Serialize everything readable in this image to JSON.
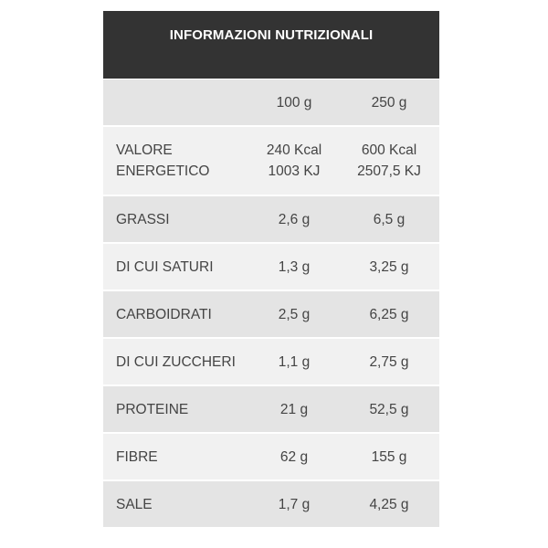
{
  "title": "INFORMAZIONI NUTRIZIONALI",
  "colors": {
    "header_bg": "#333333",
    "row_dark": "#e4e4e4",
    "row_light": "#f1f1f1"
  },
  "columns": [
    "100 g",
    "250 g"
  ],
  "rows": [
    {
      "label": [
        "VALORE",
        "ENERGETICO"
      ],
      "v100": [
        "240 Kcal",
        "1003 KJ"
      ],
      "v250": [
        "600 Kcal",
        "2507,5 KJ"
      ]
    },
    {
      "label": "GRASSI",
      "v100": "2,6 g",
      "v250": "6,5 g"
    },
    {
      "label": "DI CUI SATURI",
      "v100": "1,3 g",
      "v250": "3,25 g"
    },
    {
      "label": "CARBOIDRATI",
      "v100": "2,5 g",
      "v250": "6,25 g"
    },
    {
      "label": "DI CUI ZUCCHERI",
      "v100": "1,1 g",
      "v250": "2,75 g"
    },
    {
      "label": "PROTEINE",
      "v100": "21 g",
      "v250": "52,5 g"
    },
    {
      "label": "FIBRE",
      "v100": "62 g",
      "v250": "155 g"
    },
    {
      "label": "SALE",
      "v100": "1,7 g",
      "v250": "4,25 g"
    }
  ]
}
